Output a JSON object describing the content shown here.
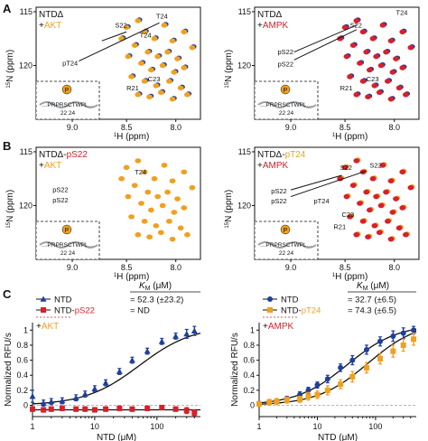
{
  "colors": {
    "blue": "#1f3f9a",
    "orange": "#f0a020",
    "red": "#d8202a",
    "black": "#111111",
    "gray": "#9aa0a6"
  },
  "panels": {
    "a": "A",
    "b": "B",
    "c": "C"
  },
  "nmr": {
    "ylabel_superscript": "15",
    "ylabel_main": "N (ppm)",
    "xlabel_superscript": "1",
    "xlabel_main": "H (ppm)",
    "x_ticks": [
      "9.0",
      "8.5",
      "8.0"
    ],
    "y_ticks": [
      "115",
      "120"
    ],
    "inset": {
      "p_label": "P",
      "sequence": "…PRPRSCTWPL…",
      "numbers": "22  24"
    },
    "spectra": [
      {
        "id": "a-left",
        "title": "NTDΔ",
        "title_plus": "+",
        "title_colored": "AKT",
        "title_color": "orange",
        "labels": [
          "S22",
          "T24",
          "T24",
          "pT24",
          "C23",
          "R21"
        ]
      },
      {
        "id": "a-right",
        "title": "NTDΔ",
        "title_plus": "+",
        "title_colored": "AMPK",
        "title_color": "red",
        "labels": [
          "S22",
          "T24",
          "pS22",
          "pS22",
          "R21",
          "C23"
        ]
      },
      {
        "id": "b-left",
        "title": "NTDΔ-",
        "title_suffix": "pS22",
        "title_suffix_color": "red",
        "title_plus": "+",
        "title_colored": "AKT",
        "title_color": "orange",
        "labels": [
          "T24",
          "pS22",
          "pS22"
        ]
      },
      {
        "id": "b-right",
        "title": "NTDΔ-",
        "title_suffix": "pT24",
        "title_suffix_color": "orange",
        "title_plus": "+",
        "title_colored": "AMPK",
        "title_color": "red",
        "labels": [
          "S22",
          "S22",
          "pS22",
          "pS22",
          "pT24",
          "C23",
          "R21"
        ]
      }
    ]
  },
  "chart_data": [
    {
      "type": "scatter",
      "id": "c-left",
      "xlabel": "NTD (μM)",
      "ylabel": "Normalized RFU/s",
      "xscale": "log",
      "xlim": [
        1,
        500
      ],
      "ylim": [
        -0.15,
        1.1
      ],
      "x_ticks": [
        "1",
        "10",
        "100"
      ],
      "y_ticks": [
        "0",
        "0.2",
        "0.4",
        "0.6",
        "0.8",
        "1"
      ],
      "km_header": "K",
      "km_header_sub": "M",
      "km_header_unit": " (μM)",
      "enzyme_plus": "+",
      "enzyme": "AKT",
      "enzyme_color": "orange",
      "series": [
        {
          "name": "NTD",
          "name_color": "black",
          "color": "blue",
          "marker": "triangle",
          "km": "= 52.3 (±23.2)",
          "points": [
            {
              "x": 1,
              "y": 0.12,
              "err": 0.08
            },
            {
              "x": 1.5,
              "y": 0.03,
              "err": 0.04
            },
            {
              "x": 2,
              "y": 0.05,
              "err": 0.04
            },
            {
              "x": 3,
              "y": 0.06,
              "err": 0.04
            },
            {
              "x": 5,
              "y": 0.1,
              "err": 0.04
            },
            {
              "x": 7,
              "y": 0.15,
              "err": 0.04
            },
            {
              "x": 10,
              "y": 0.22,
              "err": 0.04
            },
            {
              "x": 15,
              "y": 0.3,
              "err": 0.04
            },
            {
              "x": 25,
              "y": 0.45,
              "err": 0.04
            },
            {
              "x": 40,
              "y": 0.6,
              "err": 0.04
            },
            {
              "x": 70,
              "y": 0.72,
              "err": 0.04
            },
            {
              "x": 120,
              "y": 0.85,
              "err": 0.04
            },
            {
              "x": 200,
              "y": 0.92,
              "err": 0.04
            },
            {
              "x": 300,
              "y": 0.95,
              "err": 0.06
            },
            {
              "x": 400,
              "y": 0.99,
              "err": 0.06
            }
          ],
          "fit": {
            "type": "mm",
            "km": 52.3,
            "vmax": 1.06
          }
        },
        {
          "name": "NTD-",
          "name_color": "black",
          "name_suffix": "pS22",
          "name_suffix_color": "red",
          "color": "red",
          "marker": "square",
          "km": "= ND",
          "points": [
            {
              "x": 1,
              "y": -0.05,
              "err": 0.03
            },
            {
              "x": 1.5,
              "y": -0.06,
              "err": 0.03
            },
            {
              "x": 2,
              "y": -0.05,
              "err": 0.03
            },
            {
              "x": 3,
              "y": -0.04,
              "err": 0.03
            },
            {
              "x": 5,
              "y": -0.05,
              "err": 0.03
            },
            {
              "x": 7,
              "y": -0.05,
              "err": 0.03
            },
            {
              "x": 10,
              "y": -0.06,
              "err": 0.03
            },
            {
              "x": 15,
              "y": -0.05,
              "err": 0.03
            },
            {
              "x": 25,
              "y": -0.04,
              "err": 0.03
            },
            {
              "x": 40,
              "y": -0.05,
              "err": 0.03
            },
            {
              "x": 70,
              "y": -0.04,
              "err": 0.03
            },
            {
              "x": 120,
              "y": -0.03,
              "err": 0.03
            },
            {
              "x": 200,
              "y": -0.05,
              "err": 0.03
            },
            {
              "x": 300,
              "y": -0.07,
              "err": 0.04
            },
            {
              "x": 400,
              "y": -0.1,
              "err": 0.04
            }
          ],
          "fit": {
            "type": "flat",
            "value": -0.06
          }
        }
      ]
    },
    {
      "type": "scatter",
      "id": "c-right",
      "xlabel": "NTD (μM)",
      "ylabel": "Normalized RFU/s",
      "xscale": "log",
      "xlim": [
        1,
        500
      ],
      "ylim": [
        -0.15,
        1.1
      ],
      "x_ticks": [
        "1",
        "10",
        "100"
      ],
      "y_ticks": [
        "0",
        "0.2",
        "0.4",
        "0.6",
        "0.8",
        "1"
      ],
      "km_header": "K",
      "km_header_sub": "M",
      "km_header_unit": " (μM)",
      "enzyme_plus": "+",
      "enzyme": "AMPK",
      "enzyme_color": "red",
      "series": [
        {
          "name": "NTD",
          "name_color": "black",
          "color": "blue",
          "marker": "circle",
          "km": "= 32.7 (±6.5)",
          "points": [
            {
              "x": 1,
              "y": 0.02,
              "err": 0.03
            },
            {
              "x": 1.5,
              "y": 0.04,
              "err": 0.03
            },
            {
              "x": 2,
              "y": 0.06,
              "err": 0.03
            },
            {
              "x": 3,
              "y": 0.09,
              "err": 0.03
            },
            {
              "x": 5,
              "y": 0.14,
              "err": 0.04
            },
            {
              "x": 7,
              "y": 0.2,
              "err": 0.04
            },
            {
              "x": 10,
              "y": 0.27,
              "err": 0.04
            },
            {
              "x": 15,
              "y": 0.35,
              "err": 0.05
            },
            {
              "x": 25,
              "y": 0.5,
              "err": 0.05
            },
            {
              "x": 40,
              "y": 0.6,
              "err": 0.06
            },
            {
              "x": 70,
              "y": 0.74,
              "err": 0.06
            },
            {
              "x": 120,
              "y": 0.85,
              "err": 0.06
            },
            {
              "x": 200,
              "y": 0.92,
              "err": 0.07
            },
            {
              "x": 300,
              "y": 0.96,
              "err": 0.07
            },
            {
              "x": 450,
              "y": 1.0,
              "err": 0.05
            }
          ],
          "fit": {
            "type": "mm",
            "km": 32.7,
            "vmax": 1.08
          }
        },
        {
          "name": "NTD-",
          "name_color": "black",
          "name_suffix": "pT24",
          "name_suffix_color": "orange",
          "color": "orange",
          "marker": "square",
          "km": "= 74.3 (±6.5)",
          "points": [
            {
              "x": 1,
              "y": 0.02,
              "err": 0.03
            },
            {
              "x": 1.5,
              "y": 0.04,
              "err": 0.04
            },
            {
              "x": 2,
              "y": 0.05,
              "err": 0.04
            },
            {
              "x": 3,
              "y": 0.07,
              "err": 0.04
            },
            {
              "x": 5,
              "y": 0.08,
              "err": 0.04
            },
            {
              "x": 7,
              "y": 0.12,
              "err": 0.05
            },
            {
              "x": 10,
              "y": 0.14,
              "err": 0.05
            },
            {
              "x": 15,
              "y": 0.2,
              "err": 0.06
            },
            {
              "x": 25,
              "y": 0.28,
              "err": 0.06
            },
            {
              "x": 40,
              "y": 0.38,
              "err": 0.07
            },
            {
              "x": 70,
              "y": 0.5,
              "err": 0.07
            },
            {
              "x": 120,
              "y": 0.62,
              "err": 0.07
            },
            {
              "x": 200,
              "y": 0.72,
              "err": 0.08
            },
            {
              "x": 300,
              "y": 0.8,
              "err": 0.08
            },
            {
              "x": 450,
              "y": 0.88,
              "err": 0.08
            }
          ],
          "fit": {
            "type": "mm",
            "km": 74.3,
            "vmax": 1.12
          }
        }
      ]
    }
  ]
}
